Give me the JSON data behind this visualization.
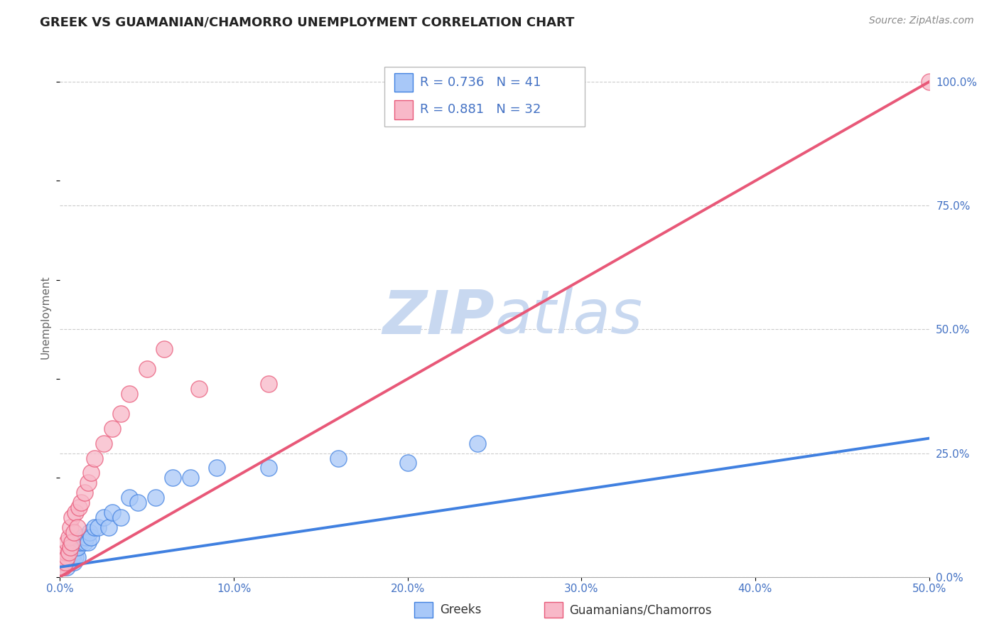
{
  "title": "GREEK VS GUAMANIAN/CHAMORRO UNEMPLOYMENT CORRELATION CHART",
  "source": "Source: ZipAtlas.com",
  "ylabel_label": "Unemployment",
  "legend_line1": "R = 0.736   N = 41",
  "legend_line2": "R = 0.881   N = 32",
  "blue_scatter_color": "#A8C8F8",
  "pink_scatter_color": "#F8B8C8",
  "blue_line_color": "#4080E0",
  "pink_line_color": "#E85878",
  "watermark_color": "#C8D8F0",
  "greek_scatter_x": [
    0.0,
    0.002,
    0.003,
    0.004,
    0.004,
    0.005,
    0.005,
    0.006,
    0.006,
    0.007,
    0.007,
    0.008,
    0.008,
    0.009,
    0.009,
    0.01,
    0.01,
    0.011,
    0.012,
    0.013,
    0.014,
    0.015,
    0.016,
    0.017,
    0.018,
    0.02,
    0.022,
    0.025,
    0.028,
    0.03,
    0.035,
    0.04,
    0.045,
    0.055,
    0.065,
    0.075,
    0.09,
    0.12,
    0.16,
    0.2,
    0.24
  ],
  "greek_scatter_y": [
    0.03,
    0.02,
    0.03,
    0.02,
    0.04,
    0.03,
    0.04,
    0.03,
    0.05,
    0.04,
    0.06,
    0.03,
    0.05,
    0.04,
    0.06,
    0.04,
    0.06,
    0.07,
    0.07,
    0.08,
    0.07,
    0.08,
    0.07,
    0.09,
    0.08,
    0.1,
    0.1,
    0.12,
    0.1,
    0.13,
    0.12,
    0.16,
    0.15,
    0.16,
    0.2,
    0.2,
    0.22,
    0.22,
    0.24,
    0.23,
    0.27
  ],
  "guam_scatter_x": [
    0.0,
    0.001,
    0.002,
    0.002,
    0.003,
    0.003,
    0.004,
    0.004,
    0.005,
    0.005,
    0.006,
    0.006,
    0.007,
    0.007,
    0.008,
    0.009,
    0.01,
    0.011,
    0.012,
    0.014,
    0.016,
    0.018,
    0.02,
    0.025,
    0.03,
    0.035,
    0.04,
    0.05,
    0.06,
    0.08,
    0.12,
    0.5
  ],
  "guam_scatter_y": [
    0.02,
    0.03,
    0.02,
    0.04,
    0.03,
    0.05,
    0.04,
    0.07,
    0.05,
    0.08,
    0.06,
    0.1,
    0.07,
    0.12,
    0.09,
    0.13,
    0.1,
    0.14,
    0.15,
    0.17,
    0.19,
    0.21,
    0.24,
    0.27,
    0.3,
    0.33,
    0.37,
    0.42,
    0.46,
    0.38,
    0.39,
    1.0
  ],
  "greek_line_x": [
    0.0,
    0.5
  ],
  "greek_line_y": [
    0.02,
    0.28
  ],
  "guam_line_x": [
    0.0,
    0.5
  ],
  "guam_line_y": [
    0.0,
    1.0
  ],
  "xlim": [
    0.0,
    0.5
  ],
  "ylim": [
    0.0,
    1.05
  ],
  "x_ticks": [
    0.0,
    0.1,
    0.2,
    0.3,
    0.4,
    0.5
  ],
  "y_ticks_right": [
    0.0,
    0.25,
    0.5,
    0.75,
    1.0
  ]
}
